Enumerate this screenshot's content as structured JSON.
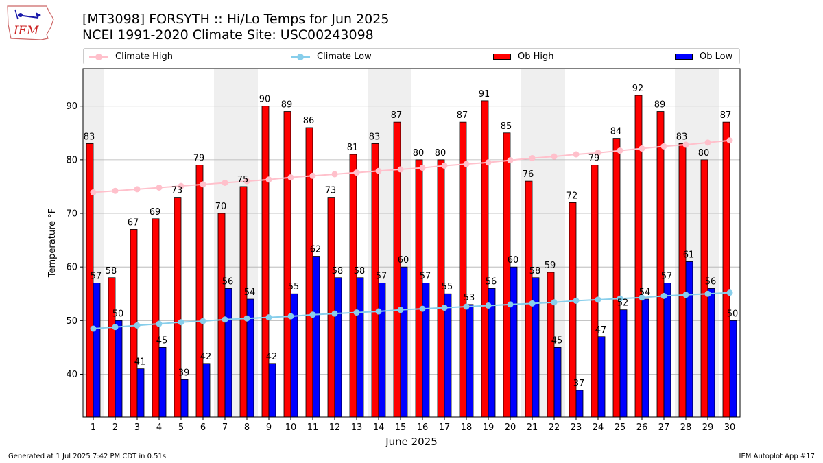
{
  "header": {
    "title_line1": "[MT3098] FORSYTH :: Hi/Lo Temps for Jun 2025",
    "title_line2": "NCEI 1991-2020 Climate Site: USC00243098",
    "logo_text": "IEM"
  },
  "legend": {
    "items": [
      {
        "label": "Climate High",
        "kind": "line",
        "color": "#ffc0cb"
      },
      {
        "label": "Climate Low",
        "kind": "line",
        "color": "#87ceeb"
      },
      {
        "label": "Ob High",
        "kind": "bar",
        "color": "#ff0000"
      },
      {
        "label": "Ob Low",
        "kind": "bar",
        "color": "#0000ff"
      }
    ]
  },
  "chart_data": {
    "type": "bar",
    "xlabel": "June 2025",
    "ylabel": "Temperature °F",
    "ylim": [
      32,
      97
    ],
    "yticks": [
      40,
      50,
      60,
      70,
      80,
      90
    ],
    "categories": [
      "1",
      "2",
      "3",
      "4",
      "5",
      "6",
      "7",
      "8",
      "9",
      "10",
      "11",
      "12",
      "13",
      "14",
      "15",
      "16",
      "17",
      "18",
      "19",
      "20",
      "21",
      "22",
      "23",
      "24",
      "25",
      "26",
      "27",
      "28",
      "29",
      "30"
    ],
    "grid": "horizontal",
    "legend_position": "top",
    "weekend_shading": [
      [
        1,
        1
      ],
      [
        7,
        8
      ],
      [
        14,
        15
      ],
      [
        21,
        22
      ],
      [
        28,
        29
      ]
    ],
    "series": [
      {
        "name": "Ob High",
        "kind": "bar",
        "color": "#ff0000",
        "values": [
          83,
          58,
          67,
          69,
          73,
          79,
          70,
          75,
          90,
          89,
          86,
          73,
          81,
          83,
          87,
          80,
          80,
          87,
          91,
          85,
          76,
          59,
          72,
          79,
          84,
          92,
          89,
          83,
          80,
          87
        ]
      },
      {
        "name": "Ob Low",
        "kind": "bar",
        "color": "#0000ff",
        "values": [
          57,
          50,
          41,
          45,
          39,
          42,
          56,
          54,
          42,
          55,
          62,
          58,
          58,
          57,
          60,
          57,
          55,
          53,
          56,
          60,
          58,
          45,
          37,
          47,
          52,
          54,
          57,
          61,
          56,
          50
        ]
      },
      {
        "name": "Climate High",
        "kind": "line",
        "color": "#ffc0cb",
        "values": [
          73.9,
          74.2,
          74.5,
          74.8,
          75.1,
          75.4,
          75.7,
          76.0,
          76.3,
          76.7,
          77.0,
          77.3,
          77.6,
          77.9,
          78.2,
          78.5,
          78.9,
          79.2,
          79.5,
          79.9,
          80.3,
          80.6,
          81.0,
          81.3,
          81.7,
          82.1,
          82.5,
          82.8,
          83.2,
          83.6
        ]
      },
      {
        "name": "Climate Low",
        "kind": "line",
        "color": "#87ceeb",
        "values": [
          48.5,
          48.8,
          49.1,
          49.4,
          49.7,
          49.9,
          50.2,
          50.4,
          50.6,
          50.8,
          51.1,
          51.3,
          51.5,
          51.7,
          52.0,
          52.2,
          52.4,
          52.6,
          52.8,
          53.0,
          53.2,
          53.4,
          53.7,
          53.9,
          54.1,
          54.3,
          54.6,
          54.8,
          55.0,
          55.2
        ]
      }
    ]
  },
  "footer": {
    "left": "Generated at 1 Jul 2025 7:42 PM CDT in 0.51s",
    "right": "IEM Autoplot App #17"
  }
}
